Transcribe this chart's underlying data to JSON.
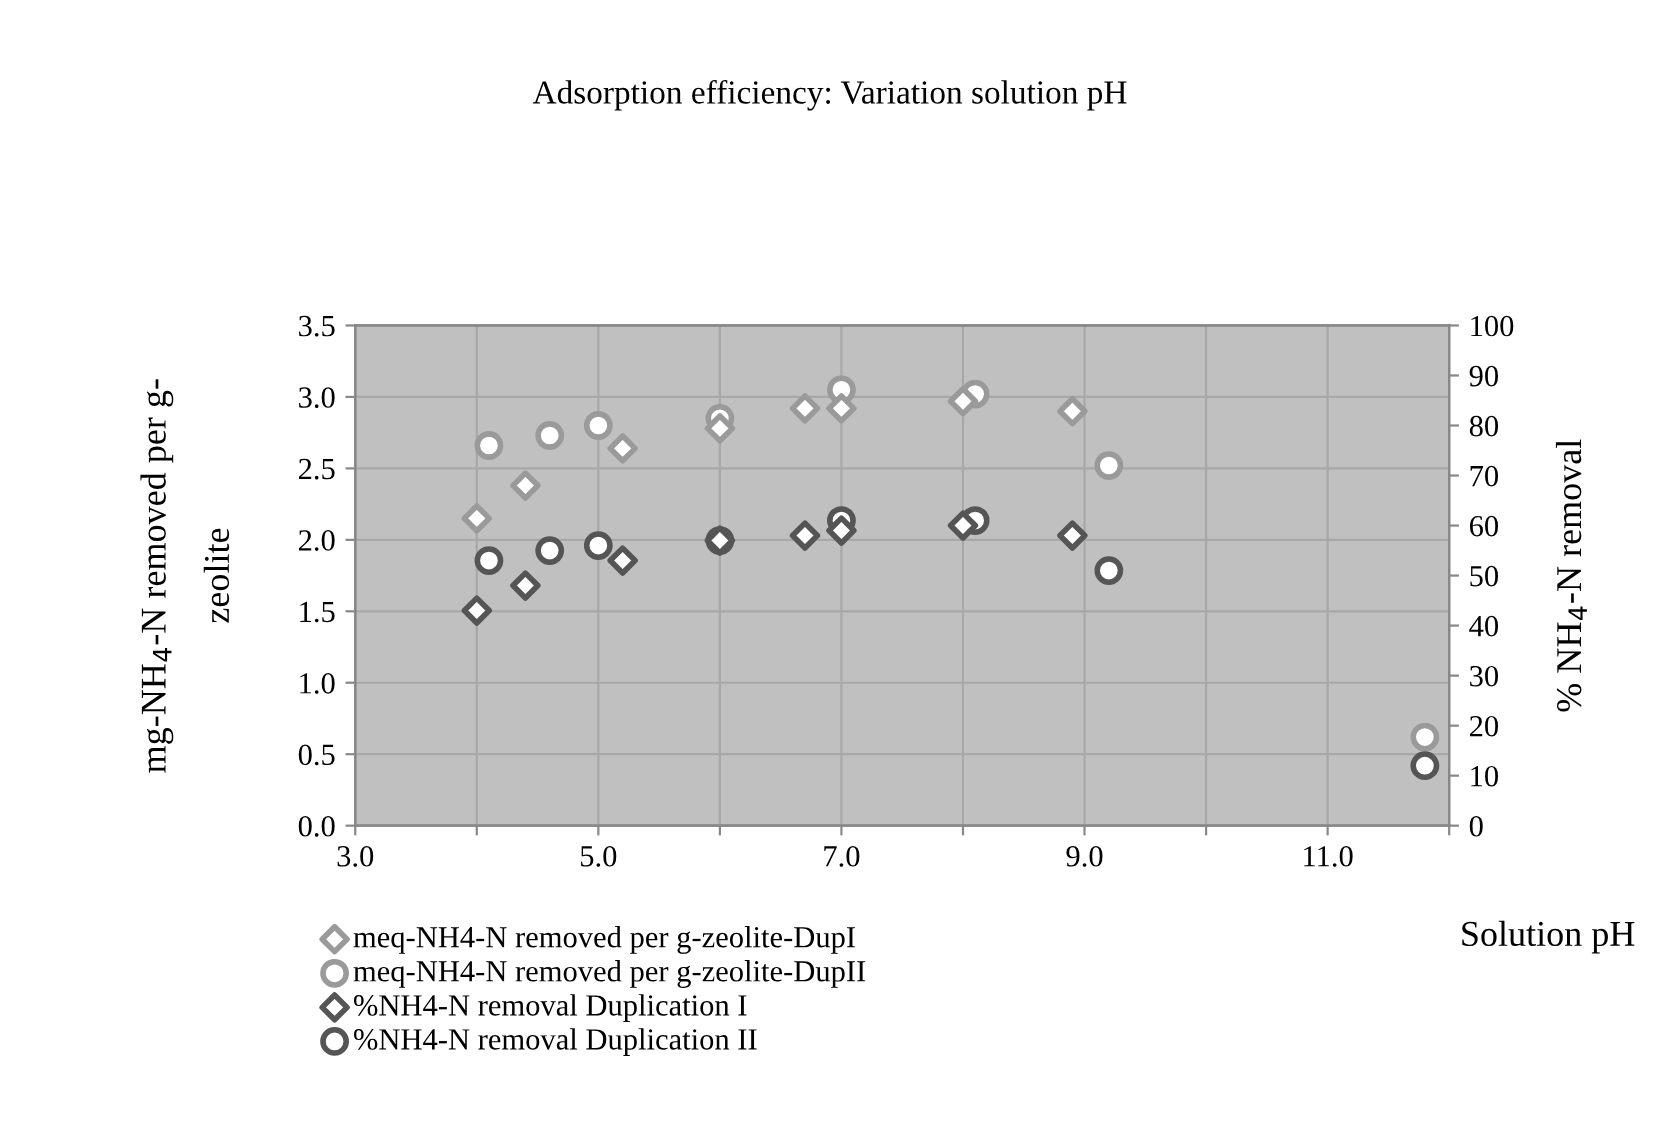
{
  "chart_data": {
    "type": "scatter",
    "title": "Adsorption efficiency: Variation solution pH",
    "xlabel": "Solution pH",
    "ylabel": "mg-NH$_{4}$-N removed per g-\nzeolite",
    "y2label": "% NH$_{4}$-N removal",
    "series": [
      {
        "name": "meq-NH4-N removed per g-zeolite-DupI",
        "color": "#9a9a9a",
        "marker": "diamond",
        "x": [
          4.0,
          4.4,
          5.2,
          6.0,
          6.7,
          7.0,
          8.0,
          8.9
        ],
        "values": [
          2.15,
          2.38,
          2.64,
          2.78,
          2.92,
          2.92,
          2.97,
          2.9
        ]
      },
      {
        "name": "meq-NH4-N removed per g-zeolite-DupII",
        "color": "#9a9a9a",
        "marker": "circle",
        "x": [
          4.1,
          4.6,
          5.0,
          6.0,
          7.0,
          8.1,
          9.2,
          11.8
        ],
        "values": [
          2.66,
          2.73,
          2.8,
          2.85,
          3.05,
          3.02,
          2.52,
          0.62
        ]
      },
      {
        "name": "%NH4-N removal Duplication I",
        "color": "#555555",
        "marker": "diamond",
        "axis": "y2",
        "x": [
          4.0,
          4.4,
          5.2,
          6.0,
          6.7,
          7.0,
          8.0,
          8.9
        ],
        "values": [
          43,
          48,
          53,
          57,
          58,
          59,
          60,
          58
        ]
      },
      {
        "name": "%NH4-N removal Duplication II",
        "color": "#555555",
        "marker": "circle",
        "axis": "y2",
        "x": [
          4.1,
          4.6,
          5.0,
          6.0,
          7.0,
          8.1,
          9.2,
          11.8
        ],
        "values": [
          53,
          55,
          56,
          57,
          61,
          61,
          51,
          12
        ]
      }
    ],
    "xlim": [
      3,
      12
    ],
    "xticks": [
      {
        "value": 3,
        "label": "3.0"
      },
      {
        "value": 4,
        "label": null
      },
      {
        "value": 5,
        "label": "5.0"
      },
      {
        "value": 6,
        "label": null
      },
      {
        "value": 7,
        "label": "7.0"
      },
      {
        "value": 8,
        "label": null
      },
      {
        "value": 9,
        "label": "9.0"
      },
      {
        "value": 10,
        "label": null
      },
      {
        "value": 11,
        "label": "11.0"
      },
      {
        "value": 12,
        "label": null
      }
    ],
    "ylim": [
      0,
      3.5
    ],
    "yticks": [
      {
        "value": 0,
        "label": "0.0"
      },
      0.5,
      {
        "value": 1,
        "label": "1.0"
      },
      1.5,
      {
        "value": 2,
        "label": "2.0"
      },
      2.5,
      {
        "value": 3,
        "label": "3.0"
      },
      3.5
    ],
    "y2lim": [
      0,
      100
    ],
    "y2ticks": [
      0,
      10,
      20,
      30,
      40,
      50,
      60,
      70,
      80,
      90,
      100
    ],
    "grid": true,
    "legend": "bottom left"
  }
}
